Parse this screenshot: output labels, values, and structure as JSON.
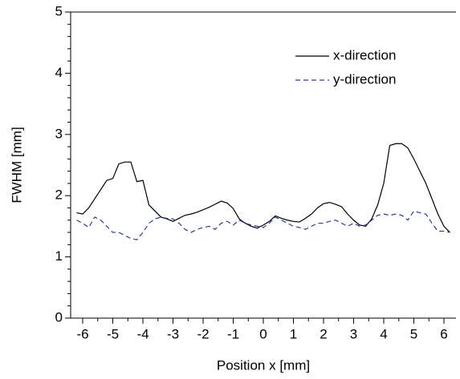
{
  "chart_data": {
    "type": "line",
    "xlabel": "Position x  [mm]",
    "ylabel": "FWHM [mm]",
    "x": [
      -6.2,
      -6.0,
      -5.8,
      -5.6,
      -5.4,
      -5.2,
      -5.0,
      -4.8,
      -4.6,
      -4.4,
      -4.2,
      -4.0,
      -3.8,
      -3.6,
      -3.4,
      -3.2,
      -3.0,
      -2.8,
      -2.6,
      -2.4,
      -2.2,
      -2.0,
      -1.8,
      -1.6,
      -1.4,
      -1.2,
      -1.0,
      -0.8,
      -0.6,
      -0.4,
      -0.2,
      0,
      0.2,
      0.4,
      0.6,
      0.8,
      1.0,
      1.2,
      1.4,
      1.6,
      1.8,
      2.0,
      2.2,
      2.4,
      2.6,
      2.8,
      3.0,
      3.2,
      3.4,
      3.6,
      3.8,
      4.0,
      4.2,
      4.4,
      4.6,
      4.8,
      5.0,
      5.2,
      5.4,
      5.6,
      5.8,
      6.0,
      6.2
    ],
    "series": [
      {
        "name": "x-direction",
        "color": "#000000",
        "dash": false,
        "values": [
          1.72,
          1.7,
          1.8,
          1.95,
          2.1,
          2.25,
          2.28,
          2.52,
          2.55,
          2.55,
          2.23,
          2.25,
          1.85,
          1.75,
          1.65,
          1.62,
          1.58,
          1.63,
          1.68,
          1.7,
          1.73,
          1.77,
          1.81,
          1.86,
          1.91,
          1.88,
          1.79,
          1.62,
          1.55,
          1.5,
          1.47,
          1.52,
          1.58,
          1.67,
          1.63,
          1.6,
          1.58,
          1.57,
          1.63,
          1.7,
          1.8,
          1.87,
          1.89,
          1.86,
          1.82,
          1.7,
          1.6,
          1.52,
          1.5,
          1.62,
          1.85,
          2.2,
          2.82,
          2.85,
          2.85,
          2.78,
          2.6,
          2.4,
          2.2,
          1.95,
          1.7,
          1.5,
          1.4
        ]
      },
      {
        "name": "y-direction",
        "color": "#2a3e9a",
        "dash": true,
        "values": [
          1.6,
          1.55,
          1.48,
          1.65,
          1.6,
          1.5,
          1.4,
          1.4,
          1.35,
          1.3,
          1.28,
          1.4,
          1.55,
          1.62,
          1.65,
          1.63,
          1.62,
          1.55,
          1.45,
          1.4,
          1.45,
          1.48,
          1.5,
          1.45,
          1.55,
          1.58,
          1.52,
          1.6,
          1.55,
          1.52,
          1.5,
          1.48,
          1.55,
          1.65,
          1.6,
          1.55,
          1.5,
          1.48,
          1.45,
          1.5,
          1.55,
          1.55,
          1.58,
          1.6,
          1.55,
          1.5,
          1.55,
          1.5,
          1.52,
          1.6,
          1.68,
          1.7,
          1.68,
          1.7,
          1.68,
          1.6,
          1.75,
          1.72,
          1.7,
          1.55,
          1.42,
          1.42,
          1.4
        ]
      }
    ],
    "xlim": [
      -6.4,
      6.4
    ],
    "xticks": [
      -6,
      -5,
      -4,
      -3,
      -2,
      -1,
      0,
      1,
      2,
      3,
      4,
      5,
      6
    ],
    "ylim": [
      0,
      5
    ],
    "yticks": [
      0,
      1,
      2,
      3,
      4,
      5
    ],
    "legend": "upper right"
  }
}
